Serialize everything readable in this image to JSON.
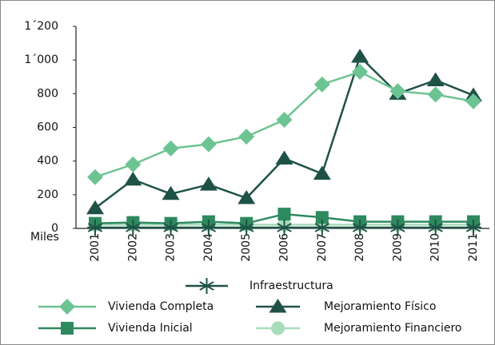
{
  "chart_data": {
    "type": "line",
    "categories": [
      "2001",
      "2002",
      "2003",
      "2004",
      "2005",
      "2006",
      "2007",
      "2008",
      "2009",
      "2010",
      "2011"
    ],
    "y_unit_label": "Miles",
    "ylim": [
      0,
      1200
    ],
    "yticks": [
      0,
      200,
      400,
      600,
      800,
      {
        "value": 1000,
        "label": "1´000"
      },
      {
        "value": 1200,
        "label": "1´200"
      }
    ],
    "series": [
      {
        "name": "Infraestructura",
        "color": "#1f5247",
        "marker": "asterisk",
        "values": [
          5,
          5,
          5,
          5,
          5,
          5,
          5,
          5,
          5,
          5,
          5
        ]
      },
      {
        "name": "Vivienda Completa",
        "color": "#6cc492",
        "marker": "diamond",
        "values": [
          305,
          380,
          475,
          500,
          545,
          645,
          855,
          930,
          815,
          795,
          755
        ]
      },
      {
        "name": "Mejoramiento Físico",
        "color": "#1f5247",
        "marker": "triangle",
        "values": [
          120,
          290,
          205,
          260,
          180,
          415,
          325,
          1020,
          800,
          880,
          790
        ]
      },
      {
        "name": "Vivienda Inicial",
        "color": "#2e8a5e",
        "marker": "square",
        "values": [
          30,
          35,
          30,
          40,
          30,
          85,
          65,
          40,
          40,
          40,
          40
        ]
      },
      {
        "name": "Mejoramiento Financiero",
        "color": "#a9dcbb",
        "marker": "circle",
        "values": [
          22,
          22,
          22,
          22,
          22,
          22,
          22,
          22,
          22,
          22,
          22
        ]
      }
    ]
  }
}
